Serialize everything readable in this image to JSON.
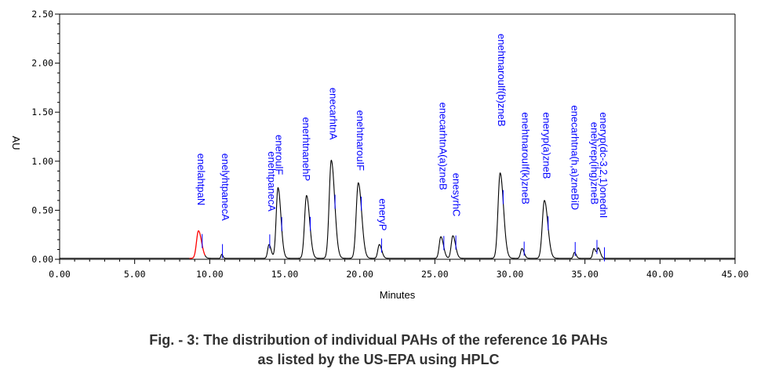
{
  "chart_data": {
    "type": "line",
    "xlabel": "Minutes",
    "ylabel": "AU",
    "xlim": [
      0,
      45
    ],
    "ylim": [
      0,
      2.5
    ],
    "x_ticks": [
      "0.00",
      "5.00",
      "10.00",
      "15.00",
      "20.00",
      "25.00",
      "30.00",
      "35.00",
      "40.00",
      "45.00"
    ],
    "y_ticks": [
      "0.00",
      "0.50",
      "1.00",
      "1.50",
      "2.00",
      "2.50"
    ],
    "grid": false,
    "baseline": 0.01,
    "colors": {
      "trace": "#000000",
      "highlight": "#ff0000",
      "labels": "#0000ff"
    },
    "peaks": [
      {
        "name": "Naphthalene",
        "rt": 9.25,
        "height": 0.28,
        "width": 0.13,
        "highlight": true
      },
      {
        "name": "Acenaphthylene",
        "rt": 10.8,
        "height": 0.04,
        "width": 0.05
      },
      {
        "name": "Acenaphthene",
        "rt": 13.95,
        "height": 0.14,
        "width": 0.09
      },
      {
        "name": "Fluorene",
        "rt": 14.55,
        "height": 0.72,
        "width": 0.12
      },
      {
        "name": "Phenanthrene",
        "rt": 16.45,
        "height": 0.64,
        "width": 0.13
      },
      {
        "name": "Anthracene",
        "rt": 18.1,
        "height": 1.0,
        "width": 0.14
      },
      {
        "name": "Fluoranthene",
        "rt": 19.9,
        "height": 0.77,
        "width": 0.14
      },
      {
        "name": "Pyrene",
        "rt": 21.3,
        "height": 0.14,
        "width": 0.1
      },
      {
        "name": "Benzo(a)anthracene",
        "rt": 25.4,
        "height": 0.22,
        "width": 0.11
      },
      {
        "name": "Chrysene",
        "rt": 26.2,
        "height": 0.23,
        "width": 0.11
      },
      {
        "name": "Benzo(b)fluoranthene",
        "rt": 29.35,
        "height": 0.87,
        "width": 0.14
      },
      {
        "name": "Benzo(k)fluoranthene",
        "rt": 30.8,
        "height": 0.1,
        "width": 0.09
      },
      {
        "name": "Benzo(a)pyrene",
        "rt": 32.3,
        "height": 0.59,
        "width": 0.14
      },
      {
        "name": "Dibenzo(a,h)anthracene",
        "rt": 34.3,
        "height": 0.06,
        "width": 0.07
      },
      {
        "name": "Benzo(ghi)perylene",
        "rt": 35.6,
        "height": 0.1,
        "width": 0.08
      },
      {
        "name": "Indeno(1,2,3-cd)pyrene",
        "rt": 35.9,
        "height": 0.1,
        "width": 0.08
      }
    ],
    "labels": [
      {
        "text": "enelahtpaN",
        "rt": 9.0,
        "top": 1.08
      },
      {
        "text": "enelyhtpanecA",
        "rt": 10.6,
        "top": 1.08
      },
      {
        "text": "enehtpanecA",
        "rt": 13.7,
        "top": 1.1
      },
      {
        "text": "eneroulF",
        "rt": 14.2,
        "top": 1.27
      },
      {
        "text": "enerhtnanehP",
        "rt": 16.0,
        "top": 1.45
      },
      {
        "text": "enecarhtnA",
        "rt": 17.8,
        "top": 1.75
      },
      {
        "text": "enehtnarouIF",
        "rt": 19.6,
        "top": 1.52
      },
      {
        "text": "eneryP",
        "rt": 21.1,
        "top": 0.62
      },
      {
        "text": "enecarhtnA(a)zneB",
        "rt": 25.1,
        "top": 1.6
      },
      {
        "text": "enesyrhC",
        "rt": 26.0,
        "top": 0.88
      },
      {
        "text": "enehtnarouIf(b)zneB",
        "rt": 29.0,
        "top": 2.3
      },
      {
        "text": "enehtnarouIf(k)zneB",
        "rt": 30.6,
        "top": 1.5
      },
      {
        "text": "eneryp(a)zneB",
        "rt": 32.0,
        "top": 1.5
      },
      {
        "text": "enecarhtna(h,a)zneBiD",
        "rt": 33.9,
        "top": 1.57
      },
      {
        "text": "enelyrep(ihg)zneB",
        "rt": 35.2,
        "top": 1.4
      },
      {
        "text": "eneryp(dc-3,2,1)onednI",
        "rt": 35.8,
        "top": 1.5
      }
    ],
    "markers": [
      9.5,
      10.85,
      14.0,
      14.8,
      16.7,
      18.35,
      20.1,
      21.45,
      25.6,
      26.4,
      29.55,
      30.95,
      32.55,
      34.35,
      35.8,
      36.3
    ]
  },
  "caption": {
    "line1": "Fig.  - 3: The distribution of individual PAHs of the reference 16 PAHs",
    "line2": "as listed by the US-EPA using HPLC"
  }
}
